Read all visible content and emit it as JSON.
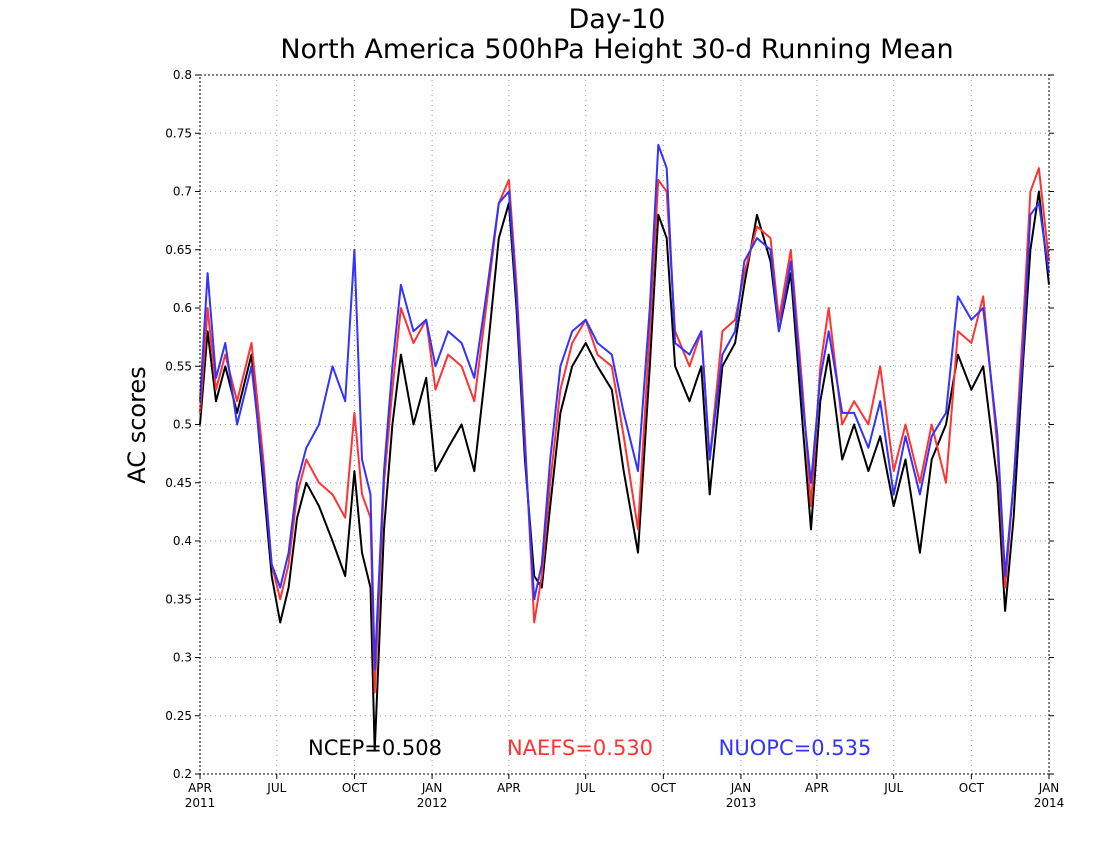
{
  "chart_data": {
    "type": "line",
    "title": "Day-10",
    "subtitle": "North America 500hPa Height 30-d Running Mean",
    "xlabel": "",
    "ylabel": "AC scores",
    "xlim": [
      "2011-04-01",
      "2014-01-01"
    ],
    "ylim": [
      0.2,
      0.8
    ],
    "grid": true,
    "y_ticks": [
      0.2,
      0.25,
      0.3,
      0.35,
      0.4,
      0.45,
      0.5,
      0.55,
      0.6,
      0.65,
      0.7,
      0.75,
      0.8
    ],
    "x_ticks": [
      {
        "date": "2011-04-01",
        "label": "APR",
        "year": "2011"
      },
      {
        "date": "2011-07-01",
        "label": "JUL",
        "year": ""
      },
      {
        "date": "2011-10-01",
        "label": "OCT",
        "year": ""
      },
      {
        "date": "2012-01-01",
        "label": "JAN",
        "year": "2012"
      },
      {
        "date": "2012-04-01",
        "label": "APR",
        "year": ""
      },
      {
        "date": "2012-07-01",
        "label": "JUL",
        "year": ""
      },
      {
        "date": "2012-10-01",
        "label": "OCT",
        "year": ""
      },
      {
        "date": "2013-01-01",
        "label": "JAN",
        "year": "2013"
      },
      {
        "date": "2013-04-01",
        "label": "APR",
        "year": ""
      },
      {
        "date": "2013-07-01",
        "label": "JUL",
        "year": ""
      },
      {
        "date": "2013-10-01",
        "label": "OCT",
        "year": ""
      },
      {
        "date": "2014-01-01",
        "label": "JAN",
        "year": "2014"
      }
    ],
    "series": [
      {
        "name": "NCEP",
        "color": "#000000",
        "points": [
          [
            "2011-04-01",
            0.5
          ],
          [
            "2011-04-10",
            0.58
          ],
          [
            "2011-04-20",
            0.52
          ],
          [
            "2011-05-01",
            0.55
          ],
          [
            "2011-05-15",
            0.51
          ],
          [
            "2011-06-01",
            0.56
          ],
          [
            "2011-06-15",
            0.45
          ],
          [
            "2011-06-25",
            0.37
          ],
          [
            "2011-07-05",
            0.33
          ],
          [
            "2011-07-15",
            0.36
          ],
          [
            "2011-07-25",
            0.42
          ],
          [
            "2011-08-05",
            0.45
          ],
          [
            "2011-08-20",
            0.43
          ],
          [
            "2011-09-05",
            0.4
          ],
          [
            "2011-09-20",
            0.37
          ],
          [
            "2011-10-01",
            0.46
          ],
          [
            "2011-10-10",
            0.39
          ],
          [
            "2011-10-20",
            0.36
          ],
          [
            "2011-10-25",
            0.22
          ],
          [
            "2011-11-05",
            0.41
          ],
          [
            "2011-11-15",
            0.5
          ],
          [
            "2011-11-25",
            0.56
          ],
          [
            "2011-12-10",
            0.5
          ],
          [
            "2011-12-25",
            0.54
          ],
          [
            "2012-01-05",
            0.46
          ],
          [
            "2012-01-20",
            0.48
          ],
          [
            "2012-02-05",
            0.5
          ],
          [
            "2012-02-20",
            0.46
          ],
          [
            "2012-03-05",
            0.55
          ],
          [
            "2012-03-20",
            0.66
          ],
          [
            "2012-04-01",
            0.69
          ],
          [
            "2012-04-10",
            0.6
          ],
          [
            "2012-04-20",
            0.47
          ],
          [
            "2012-05-01",
            0.37
          ],
          [
            "2012-05-10",
            0.36
          ],
          [
            "2012-05-20",
            0.43
          ],
          [
            "2012-06-01",
            0.51
          ],
          [
            "2012-06-15",
            0.55
          ],
          [
            "2012-07-01",
            0.57
          ],
          [
            "2012-07-15",
            0.55
          ],
          [
            "2012-08-01",
            0.53
          ],
          [
            "2012-08-15",
            0.46
          ],
          [
            "2012-09-01",
            0.39
          ],
          [
            "2012-09-15",
            0.55
          ],
          [
            "2012-09-25",
            0.68
          ],
          [
            "2012-10-05",
            0.66
          ],
          [
            "2012-10-15",
            0.55
          ],
          [
            "2012-11-01",
            0.52
          ],
          [
            "2012-11-15",
            0.55
          ],
          [
            "2012-11-25",
            0.44
          ],
          [
            "2012-12-10",
            0.55
          ],
          [
            "2012-12-25",
            0.57
          ],
          [
            "2013-01-05",
            0.62
          ],
          [
            "2013-01-20",
            0.68
          ],
          [
            "2013-02-05",
            0.64
          ],
          [
            "2013-02-15",
            0.58
          ],
          [
            "2013-03-01",
            0.63
          ],
          [
            "2013-03-15",
            0.5
          ],
          [
            "2013-03-25",
            0.41
          ],
          [
            "2013-04-05",
            0.52
          ],
          [
            "2013-04-15",
            0.56
          ],
          [
            "2013-05-01",
            0.47
          ],
          [
            "2013-05-15",
            0.5
          ],
          [
            "2013-06-01",
            0.46
          ],
          [
            "2013-06-15",
            0.49
          ],
          [
            "2013-07-01",
            0.43
          ],
          [
            "2013-07-15",
            0.47
          ],
          [
            "2013-08-01",
            0.39
          ],
          [
            "2013-08-15",
            0.47
          ],
          [
            "2013-09-01",
            0.5
          ],
          [
            "2013-09-15",
            0.56
          ],
          [
            "2013-10-01",
            0.53
          ],
          [
            "2013-10-15",
            0.55
          ],
          [
            "2013-11-01",
            0.45
          ],
          [
            "2013-11-10",
            0.34
          ],
          [
            "2013-11-20",
            0.42
          ],
          [
            "2013-12-01",
            0.55
          ],
          [
            "2013-12-10",
            0.65
          ],
          [
            "2013-12-20",
            0.7
          ],
          [
            "2014-01-01",
            0.62
          ]
        ]
      },
      {
        "name": "NAEFS",
        "color": "#ff3333",
        "points": [
          [
            "2011-04-01",
            0.51
          ],
          [
            "2011-04-10",
            0.6
          ],
          [
            "2011-04-20",
            0.53
          ],
          [
            "2011-05-01",
            0.56
          ],
          [
            "2011-05-15",
            0.52
          ],
          [
            "2011-06-01",
            0.57
          ],
          [
            "2011-06-15",
            0.47
          ],
          [
            "2011-06-25",
            0.38
          ],
          [
            "2011-07-05",
            0.35
          ],
          [
            "2011-07-15",
            0.38
          ],
          [
            "2011-07-25",
            0.44
          ],
          [
            "2011-08-05",
            0.47
          ],
          [
            "2011-08-20",
            0.45
          ],
          [
            "2011-09-05",
            0.44
          ],
          [
            "2011-09-20",
            0.42
          ],
          [
            "2011-10-01",
            0.51
          ],
          [
            "2011-10-10",
            0.44
          ],
          [
            "2011-10-20",
            0.42
          ],
          [
            "2011-10-25",
            0.27
          ],
          [
            "2011-11-05",
            0.45
          ],
          [
            "2011-11-15",
            0.53
          ],
          [
            "2011-11-25",
            0.6
          ],
          [
            "2011-12-10",
            0.57
          ],
          [
            "2011-12-25",
            0.59
          ],
          [
            "2012-01-05",
            0.53
          ],
          [
            "2012-01-20",
            0.56
          ],
          [
            "2012-02-05",
            0.55
          ],
          [
            "2012-02-20",
            0.52
          ],
          [
            "2012-03-05",
            0.6
          ],
          [
            "2012-03-20",
            0.69
          ],
          [
            "2012-04-01",
            0.71
          ],
          [
            "2012-04-10",
            0.62
          ],
          [
            "2012-04-20",
            0.49
          ],
          [
            "2012-05-01",
            0.33
          ],
          [
            "2012-05-10",
            0.37
          ],
          [
            "2012-05-20",
            0.45
          ],
          [
            "2012-06-01",
            0.53
          ],
          [
            "2012-06-15",
            0.57
          ],
          [
            "2012-07-01",
            0.59
          ],
          [
            "2012-07-15",
            0.56
          ],
          [
            "2012-08-01",
            0.55
          ],
          [
            "2012-08-15",
            0.49
          ],
          [
            "2012-09-01",
            0.41
          ],
          [
            "2012-09-15",
            0.58
          ],
          [
            "2012-09-25",
            0.71
          ],
          [
            "2012-10-05",
            0.7
          ],
          [
            "2012-10-15",
            0.58
          ],
          [
            "2012-11-01",
            0.55
          ],
          [
            "2012-11-15",
            0.58
          ],
          [
            "2012-11-25",
            0.47
          ],
          [
            "2012-12-10",
            0.58
          ],
          [
            "2012-12-25",
            0.59
          ],
          [
            "2013-01-05",
            0.63
          ],
          [
            "2013-01-20",
            0.67
          ],
          [
            "2013-02-05",
            0.66
          ],
          [
            "2013-02-15",
            0.59
          ],
          [
            "2013-03-01",
            0.65
          ],
          [
            "2013-03-15",
            0.53
          ],
          [
            "2013-03-25",
            0.43
          ],
          [
            "2013-04-05",
            0.55
          ],
          [
            "2013-04-15",
            0.6
          ],
          [
            "2013-05-01",
            0.5
          ],
          [
            "2013-05-15",
            0.52
          ],
          [
            "2013-06-01",
            0.5
          ],
          [
            "2013-06-15",
            0.55
          ],
          [
            "2013-07-01",
            0.46
          ],
          [
            "2013-07-15",
            0.5
          ],
          [
            "2013-08-01",
            0.45
          ],
          [
            "2013-08-15",
            0.5
          ],
          [
            "2013-09-01",
            0.45
          ],
          [
            "2013-09-15",
            0.58
          ],
          [
            "2013-10-01",
            0.57
          ],
          [
            "2013-10-15",
            0.61
          ],
          [
            "2013-11-01",
            0.48
          ],
          [
            "2013-11-10",
            0.36
          ],
          [
            "2013-11-20",
            0.45
          ],
          [
            "2013-12-01",
            0.58
          ],
          [
            "2013-12-10",
            0.7
          ],
          [
            "2013-12-20",
            0.72
          ],
          [
            "2014-01-01",
            0.64
          ]
        ]
      },
      {
        "name": "NUOPC",
        "color": "#3333ff",
        "points": [
          [
            "2011-04-01",
            0.52
          ],
          [
            "2011-04-10",
            0.63
          ],
          [
            "2011-04-20",
            0.54
          ],
          [
            "2011-05-01",
            0.57
          ],
          [
            "2011-05-15",
            0.5
          ],
          [
            "2011-06-01",
            0.55
          ],
          [
            "2011-06-15",
            0.46
          ],
          [
            "2011-06-25",
            0.38
          ],
          [
            "2011-07-05",
            0.36
          ],
          [
            "2011-07-15",
            0.39
          ],
          [
            "2011-07-25",
            0.45
          ],
          [
            "2011-08-05",
            0.48
          ],
          [
            "2011-08-20",
            0.5
          ],
          [
            "2011-09-05",
            0.55
          ],
          [
            "2011-09-20",
            0.52
          ],
          [
            "2011-10-01",
            0.65
          ],
          [
            "2011-10-10",
            0.47
          ],
          [
            "2011-10-20",
            0.44
          ],
          [
            "2011-10-25",
            0.29
          ],
          [
            "2011-11-05",
            0.46
          ],
          [
            "2011-11-15",
            0.55
          ],
          [
            "2011-11-25",
            0.62
          ],
          [
            "2011-12-10",
            0.58
          ],
          [
            "2011-12-25",
            0.59
          ],
          [
            "2012-01-05",
            0.55
          ],
          [
            "2012-01-20",
            0.58
          ],
          [
            "2012-02-05",
            0.57
          ],
          [
            "2012-02-20",
            0.54
          ],
          [
            "2012-03-05",
            0.61
          ],
          [
            "2012-03-20",
            0.69
          ],
          [
            "2012-04-01",
            0.7
          ],
          [
            "2012-04-10",
            0.61
          ],
          [
            "2012-04-20",
            0.48
          ],
          [
            "2012-05-01",
            0.35
          ],
          [
            "2012-05-10",
            0.38
          ],
          [
            "2012-05-20",
            0.47
          ],
          [
            "2012-06-01",
            0.55
          ],
          [
            "2012-06-15",
            0.58
          ],
          [
            "2012-07-01",
            0.59
          ],
          [
            "2012-07-15",
            0.57
          ],
          [
            "2012-08-01",
            0.56
          ],
          [
            "2012-08-15",
            0.51
          ],
          [
            "2012-09-01",
            0.46
          ],
          [
            "2012-09-15",
            0.6
          ],
          [
            "2012-09-25",
            0.74
          ],
          [
            "2012-10-05",
            0.72
          ],
          [
            "2012-10-15",
            0.57
          ],
          [
            "2012-11-01",
            0.56
          ],
          [
            "2012-11-15",
            0.58
          ],
          [
            "2012-11-25",
            0.47
          ],
          [
            "2012-12-10",
            0.56
          ],
          [
            "2012-12-25",
            0.58
          ],
          [
            "2013-01-05",
            0.64
          ],
          [
            "2013-01-20",
            0.66
          ],
          [
            "2013-02-05",
            0.65
          ],
          [
            "2013-02-15",
            0.58
          ],
          [
            "2013-03-01",
            0.64
          ],
          [
            "2013-03-15",
            0.52
          ],
          [
            "2013-03-25",
            0.45
          ],
          [
            "2013-04-05",
            0.54
          ],
          [
            "2013-04-15",
            0.58
          ],
          [
            "2013-05-01",
            0.51
          ],
          [
            "2013-05-15",
            0.51
          ],
          [
            "2013-06-01",
            0.48
          ],
          [
            "2013-06-15",
            0.52
          ],
          [
            "2013-07-01",
            0.44
          ],
          [
            "2013-07-15",
            0.49
          ],
          [
            "2013-08-01",
            0.44
          ],
          [
            "2013-08-15",
            0.49
          ],
          [
            "2013-09-01",
            0.51
          ],
          [
            "2013-09-15",
            0.61
          ],
          [
            "2013-10-01",
            0.59
          ],
          [
            "2013-10-15",
            0.6
          ],
          [
            "2013-11-01",
            0.49
          ],
          [
            "2013-11-10",
            0.37
          ],
          [
            "2013-11-20",
            0.45
          ],
          [
            "2013-12-01",
            0.56
          ],
          [
            "2013-12-10",
            0.68
          ],
          [
            "2013-12-20",
            0.69
          ],
          [
            "2014-01-01",
            0.63
          ]
        ]
      }
    ],
    "annotations": [
      {
        "text": "NCEP=0.508",
        "color": "#000000"
      },
      {
        "text": "NAEFS=0.530",
        "color": "#ff3333"
      },
      {
        "text": "NUOPC=0.535",
        "color": "#3333ff"
      }
    ]
  }
}
